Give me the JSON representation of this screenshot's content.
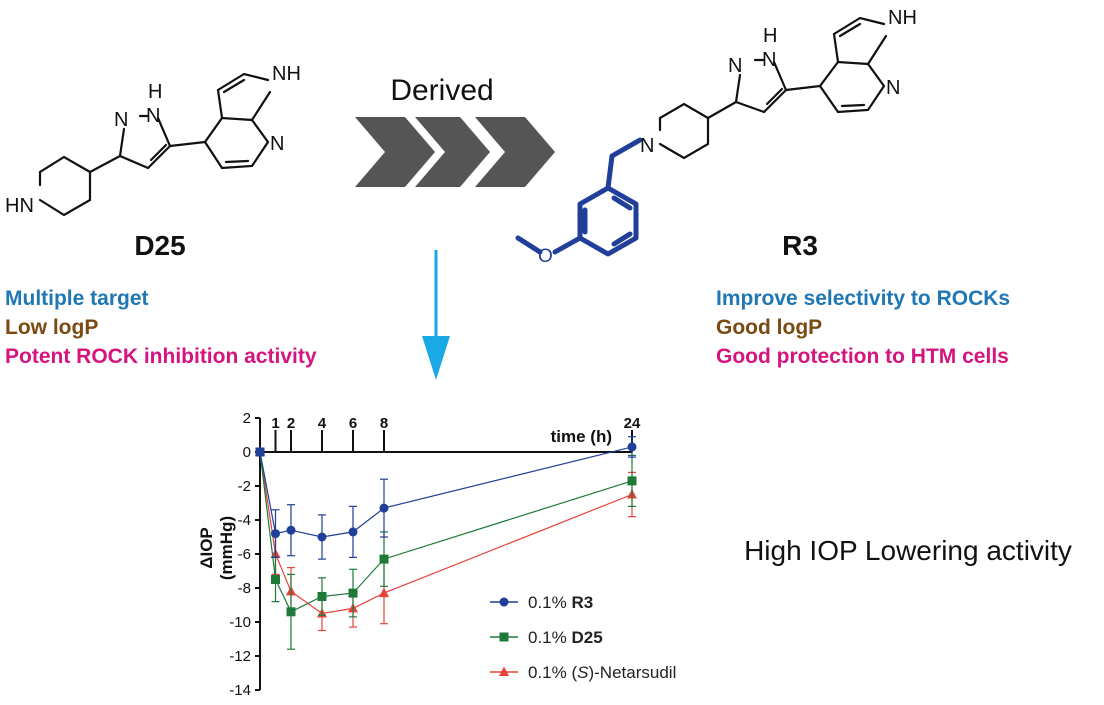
{
  "molecules": {
    "left": {
      "name": "D25",
      "atom_labels": {
        "nh_top": "NH",
        "n_pyridine": "N",
        "pyrazole_h": "H",
        "pyrazole_n1": "N",
        "pyrazole_n2": "N",
        "hn": "HN"
      },
      "properties": [
        {
          "text": "Multiple target",
          "color": "#1f77b4"
        },
        {
          "text": "Low logP",
          "color": "#7a4a12"
        },
        {
          "text": "Potent ROCK inhibition activity",
          "color": "#d6147f"
        }
      ]
    },
    "right": {
      "name": "R3",
      "atom_labels": {
        "nh_top": "NH",
        "n_pyridine": "N",
        "pyrazole_h": "H",
        "pyrazole_n1": "N",
        "pyrazole_n2": "N",
        "n_piperidine": "N",
        "o_methoxy": "O"
      },
      "properties": [
        {
          "text": "Improve selectivity to ROCKs",
          "color": "#1f77b4"
        },
        {
          "text": "Good logP",
          "color": "#7a4a12"
        },
        {
          "text": "Good protection to HTM cells",
          "color": "#d6147f"
        }
      ]
    }
  },
  "arrow_label": "Derived",
  "colors": {
    "modification": "#1f3f99",
    "down_arrow": "#1aa9e6",
    "chevron": "#555555"
  },
  "iop_caption": "High IOP Lowering activity",
  "chart_data": {
    "type": "line",
    "xlabel": "time (h)",
    "ylabel_line1": "ΔIOP",
    "ylabel_line2": "(mmHg)",
    "x_ticks": [
      "1",
      "2",
      "4",
      "6",
      "8",
      "24"
    ],
    "y_ticks": [
      "2",
      "0",
      "-2",
      "-4",
      "-6",
      "-8",
      "-10",
      "-12",
      "-14"
    ],
    "ylim": [
      -14,
      2
    ],
    "legend_position": "bottom-right",
    "series": [
      {
        "name_prefix": "0.1% ",
        "name_bold": "R3",
        "color": "#1f3f99",
        "marker": "circle",
        "x": [
          0,
          1,
          2,
          4,
          6,
          8,
          24
        ],
        "y": [
          0,
          -4.8,
          -4.6,
          -5.0,
          -4.7,
          -3.3,
          0.3
        ],
        "err": [
          0,
          1.4,
          1.5,
          1.3,
          1.5,
          1.7,
          0.6
        ]
      },
      {
        "name_prefix": "0.1% ",
        "name_bold": "D25",
        "color": "#1f7a3a",
        "marker": "square",
        "x": [
          0,
          1,
          2,
          4,
          6,
          8,
          24
        ],
        "y": [
          0,
          -7.5,
          -9.4,
          -8.5,
          -8.3,
          -6.3,
          -1.7
        ],
        "err": [
          0,
          1.3,
          2.2,
          1.1,
          1.4,
          1.6,
          1.5
        ]
      },
      {
        "name_prefix": "0.1% (",
        "name_italic": "S",
        "name_suffix": ")-Netarsudil",
        "color": "#e8423a",
        "marker": "triangle",
        "x": [
          0,
          1,
          2,
          4,
          6,
          8,
          24
        ],
        "y": [
          0,
          -6.0,
          -8.2,
          -9.5,
          -9.2,
          -8.3,
          -2.5
        ],
        "err": [
          0,
          1.2,
          1.4,
          1.0,
          1.1,
          1.8,
          1.3
        ]
      }
    ]
  }
}
